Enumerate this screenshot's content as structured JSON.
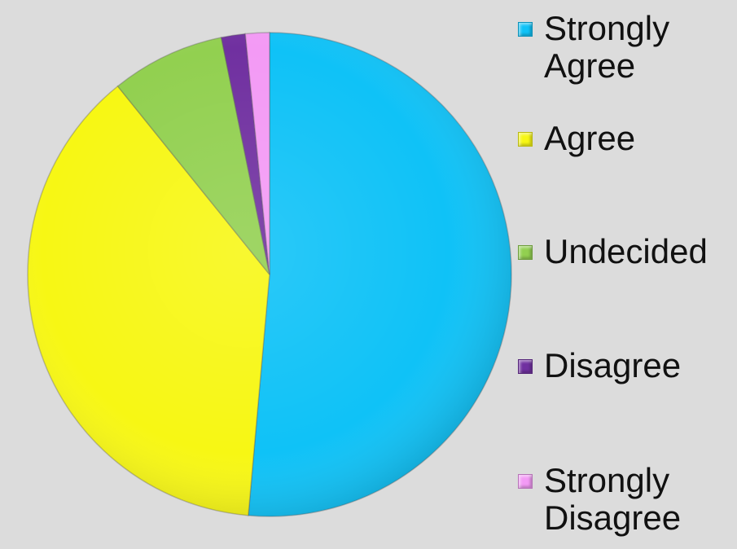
{
  "chart_data": {
    "type": "pie",
    "title": "",
    "legend_position": "right",
    "slices": [
      {
        "label": "Strongly\nAgree",
        "value": 51.4,
        "color": "#0fc2f7"
      },
      {
        "label": "Agree",
        "value": 37.8,
        "color": "#f7f714"
      },
      {
        "label": "Undecided",
        "value": 7.6,
        "color": "#92d050"
      },
      {
        "label": "Disagree",
        "value": 1.6,
        "color": "#7030a0"
      },
      {
        "label": "Strongly\nDisagree",
        "value": 1.6,
        "color": "#f39af5"
      }
    ]
  }
}
